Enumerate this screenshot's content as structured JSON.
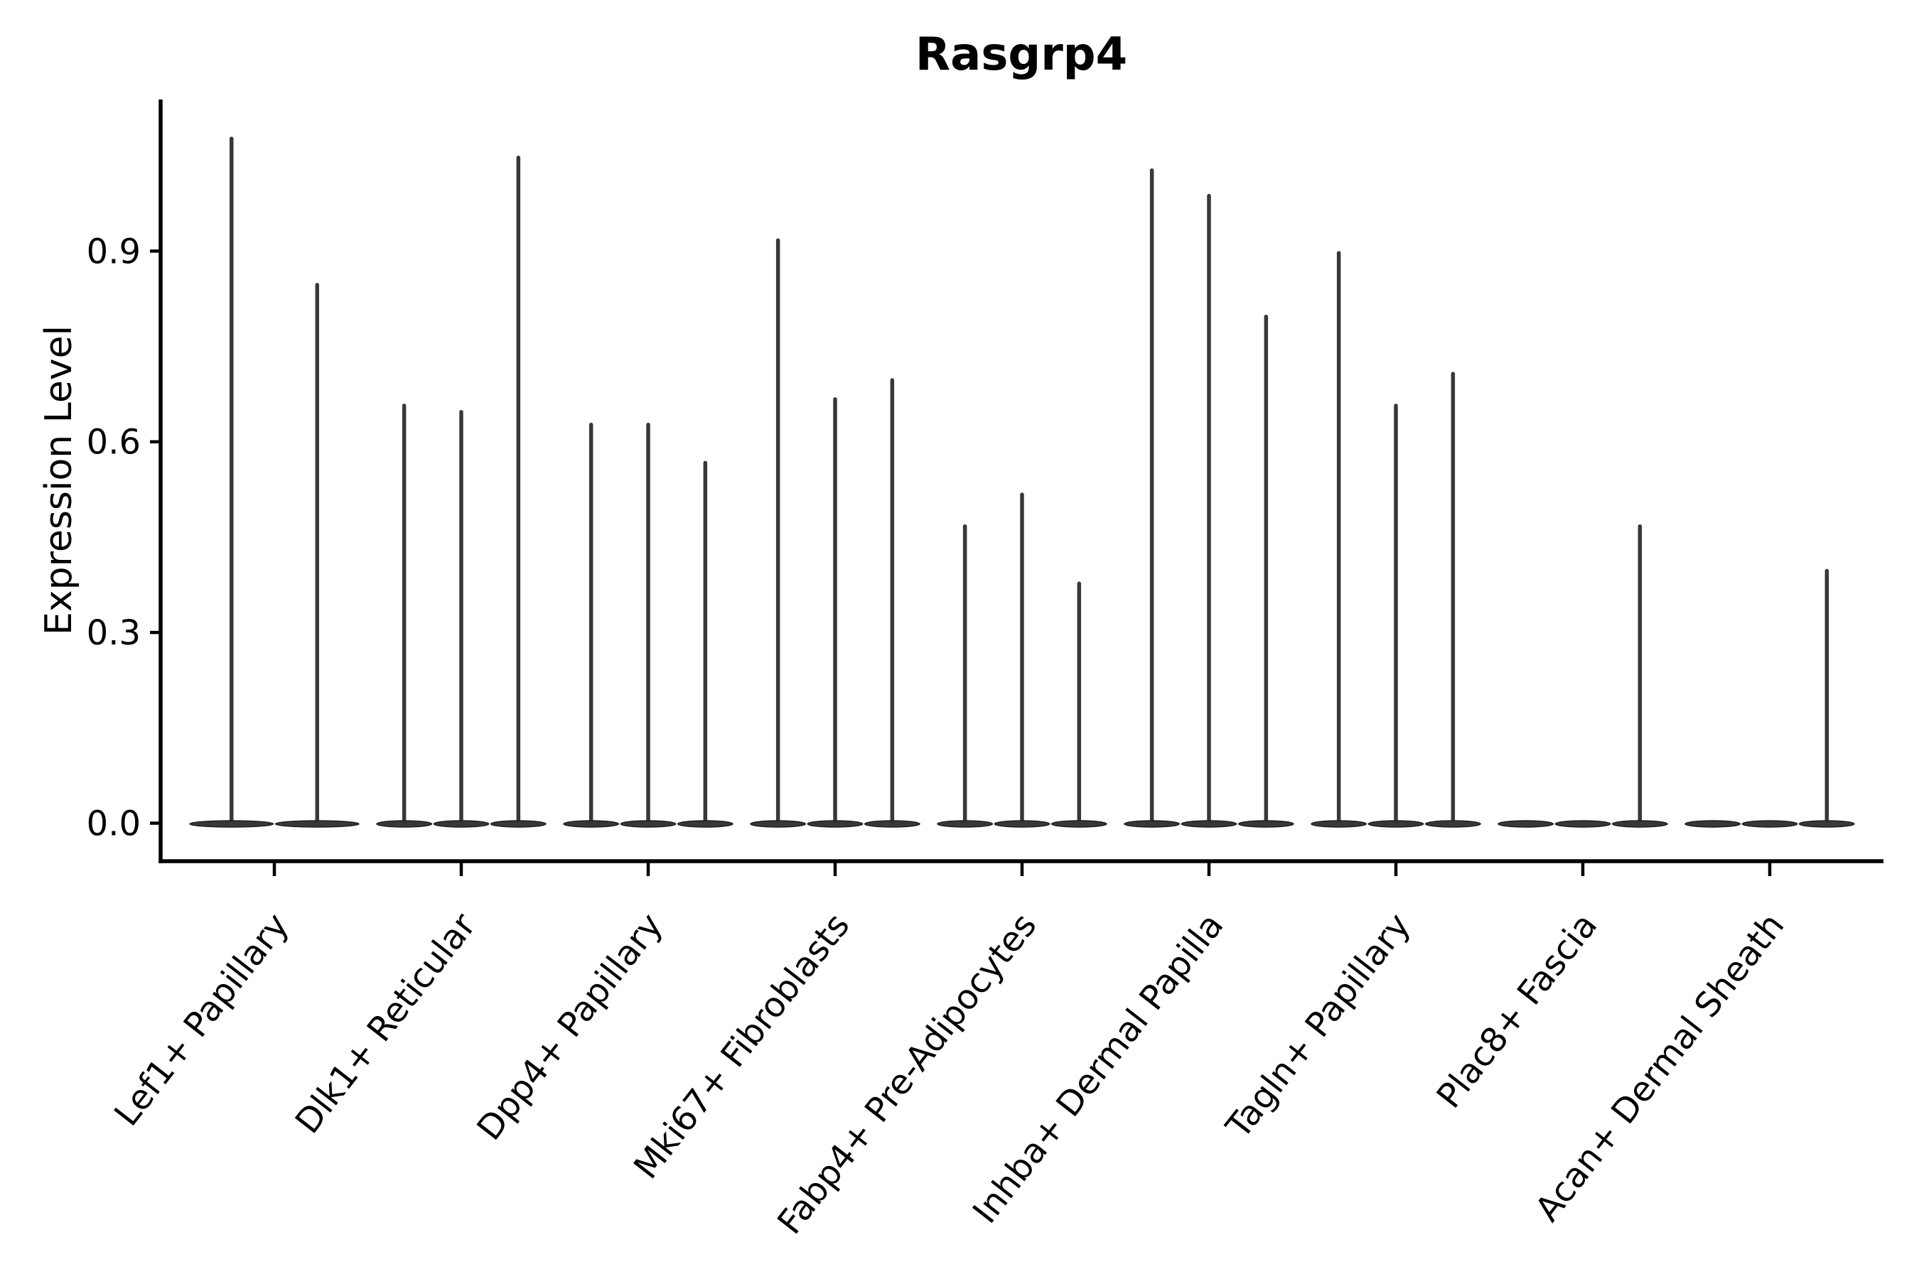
{
  "figure": {
    "background": "#ffffff"
  },
  "chart_data": {
    "type": "violin",
    "title": "Rasgrp4",
    "ylabel": "Expression Level",
    "xlabel": "",
    "ytick_labels": [
      "0.0",
      "0.3",
      "0.6",
      "0.9"
    ],
    "ytick_values": [
      0.0,
      0.3,
      0.6,
      0.9
    ],
    "ylim": [
      -0.06,
      1.14
    ],
    "grid": false,
    "legend": "none",
    "orientation": "vertical",
    "colors": {
      "violin_fill": "#383838",
      "violin_edge": "#1f1f1f",
      "axis": "#000000",
      "text": "#000000"
    },
    "categories": [
      {
        "label": "Lef1+ Papillary",
        "violin_max": [
          1.08,
          0.85
        ]
      },
      {
        "label": "Dlk1+ Reticular",
        "violin_max": [
          0.66,
          0.65,
          1.05
        ]
      },
      {
        "label": "Dpp4+ Papillary",
        "violin_max": [
          0.63,
          0.63,
          0.57
        ]
      },
      {
        "label": "Mki67+ Fibroblasts",
        "violin_max": [
          0.92,
          0.67,
          0.7
        ]
      },
      {
        "label": "Fabp4+ Pre-Adipocytes",
        "violin_max": [
          0.47,
          0.52,
          0.38
        ]
      },
      {
        "label": "Inhba+ Dermal Papilla",
        "violin_max": [
          1.03,
          0.99,
          0.8
        ]
      },
      {
        "label": "Tagln+ Papillary",
        "violin_max": [
          0.9,
          0.66,
          0.71
        ]
      },
      {
        "label": "Plac8+ Fascia",
        "violin_max": [
          0.0,
          0.0,
          0.47
        ]
      },
      {
        "label": "Acan+ Dermal Sheath",
        "violin_max": [
          0.0,
          0.0,
          0.4
        ]
      }
    ],
    "note": "All violins are flat near-zero density pancakes at 0.0 with a thin spike up to the max expression value; 0 max means no spike."
  }
}
